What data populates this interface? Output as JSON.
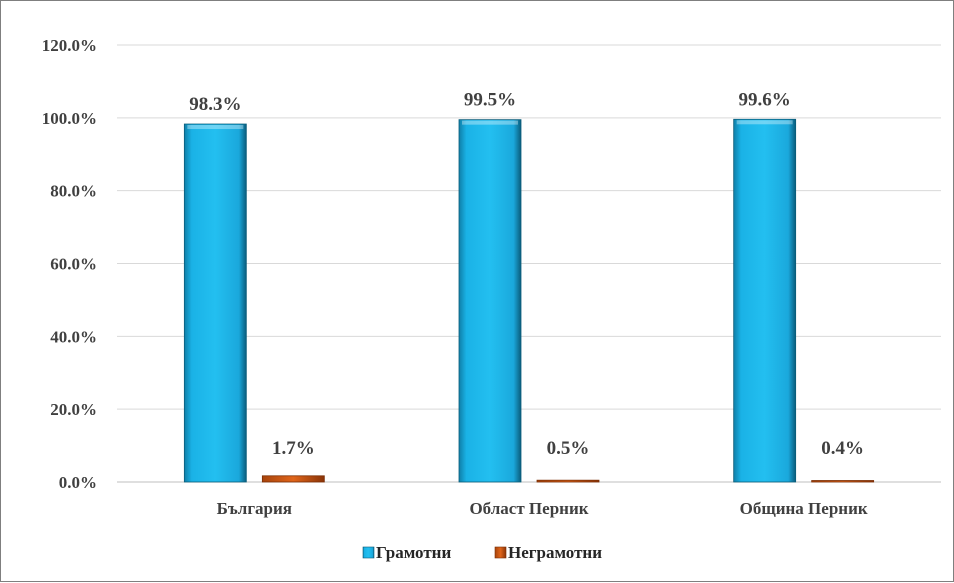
{
  "chart_data": {
    "type": "bar",
    "categories": [
      "България",
      "Област Перник",
      "Община Перник"
    ],
    "series": [
      {
        "name": "Грамотни",
        "values": [
          98.3,
          99.5,
          99.6
        ],
        "labels": [
          "98.3%",
          "99.5%",
          "99.6%"
        ],
        "color": "#1ab2e6",
        "edge_color": "#0b5d7a"
      },
      {
        "name": "Неграмотни",
        "values": [
          1.7,
          0.5,
          0.4
        ],
        "labels": [
          "1.7%",
          "0.5%",
          "0.4%"
        ],
        "color": "#e0651a",
        "edge_color": "#7a2e05"
      }
    ],
    "ylim": [
      0,
      120
    ],
    "yticks": [
      0,
      20,
      40,
      60,
      80,
      100,
      120
    ],
    "ytick_labels": [
      "0.0%",
      "20.0%",
      "40.0%",
      "60.0%",
      "80.0%",
      "100.0%",
      "120.0%"
    ],
    "title": "",
    "xlabel": "",
    "ylabel": "",
    "grid": true,
    "legend_position": "bottom"
  }
}
